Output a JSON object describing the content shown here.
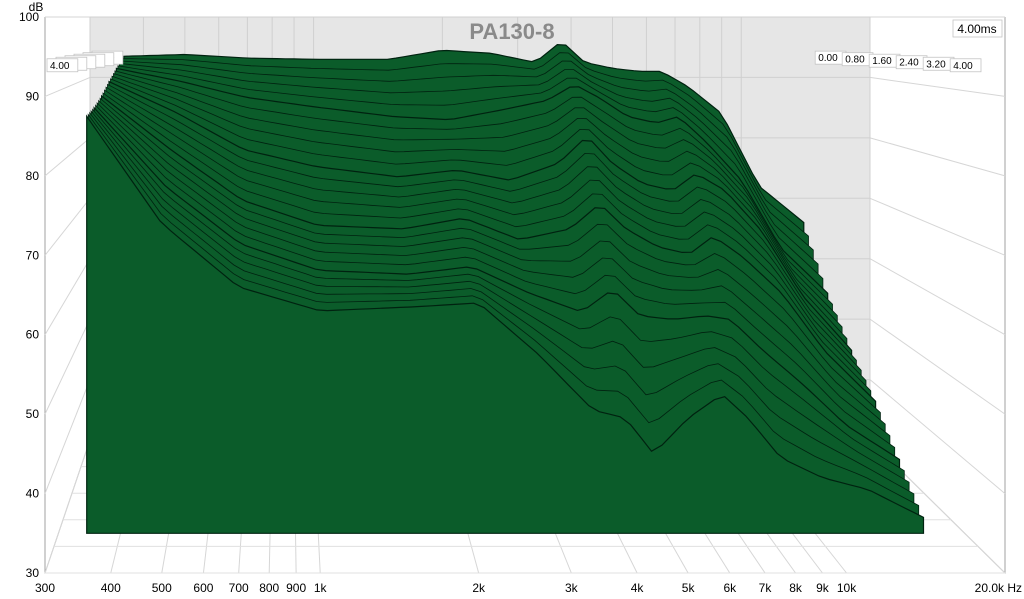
{
  "chart_data": {
    "type": "area",
    "title": "PA130-8",
    "xlabel": "Hz",
    "ylabel": "dB",
    "x_scale": "log",
    "xlim": [
      300,
      20000
    ],
    "ylim": [
      30,
      100
    ],
    "zlabel": "ms",
    "zlim": [
      0,
      4
    ],
    "grid": true,
    "y_ticks": [
      "100",
      "90",
      "80",
      "70",
      "60",
      "50",
      "40",
      "30"
    ],
    "x_ticks": [
      {
        "v": 300,
        "t": "300"
      },
      {
        "v": 400,
        "t": "400"
      },
      {
        "v": 500,
        "t": "500"
      },
      {
        "v": 600,
        "t": "600"
      },
      {
        "v": 700,
        "t": "700"
      },
      {
        "v": 800,
        "t": "800"
      },
      {
        "v": 900,
        "t": "900"
      },
      {
        "v": 1000,
        "t": "1k"
      },
      {
        "v": 2000,
        "t": "2k"
      },
      {
        "v": 3000,
        "t": "3k"
      },
      {
        "v": 4000,
        "t": "4k"
      },
      {
        "v": 5000,
        "t": "5k"
      },
      {
        "v": 6000,
        "t": "6k"
      },
      {
        "v": 7000,
        "t": "7k"
      },
      {
        "v": 8000,
        "t": "8k"
      },
      {
        "v": 9000,
        "t": "9k"
      },
      {
        "v": 10000,
        "t": "10k"
      },
      {
        "v": 20000,
        "t": "20.0k Hz"
      }
    ],
    "time_labels": [
      "0.00",
      "0.80",
      "1.60",
      "2.40",
      "3.20",
      "4.00"
    ],
    "end_time_label": "4.00ms",
    "fill_color": "#0b5c2a",
    "series": [
      {
        "t": 0.0,
        "x": [
          360,
          500,
          700,
          1000,
          1500,
          2000,
          2600,
          3300,
          3800,
          4300,
          5000,
          5800,
          6500,
          7500,
          9000,
          11000,
          14000
        ],
        "y": [
          93.5,
          93.8,
          93.2,
          93.0,
          93.0,
          94.5,
          94.0,
          92.5,
          96.0,
          92.5,
          91.5,
          91.0,
          91.0,
          88.5,
          84.0,
          72.0,
          66.0
        ]
      },
      {
        "t": 0.8,
        "x": [
          360,
          500,
          700,
          1000,
          1500,
          2000,
          2600,
          3300,
          3800,
          4300,
          5000,
          5800,
          6500,
          7500,
          9000,
          11000,
          14000
        ],
        "y": [
          92.0,
          90.0,
          87.5,
          86.0,
          84.5,
          84.0,
          85.5,
          87.0,
          89.5,
          87.5,
          84.5,
          83.5,
          84.5,
          80.5,
          74.5,
          64.0,
          57.0
        ]
      },
      {
        "t": 1.6,
        "x": [
          360,
          500,
          700,
          1000,
          1500,
          2000,
          2600,
          3300,
          3800,
          4300,
          5000,
          5800,
          6500,
          7500,
          9000,
          11000,
          14000
        ],
        "y": [
          90.5,
          86.0,
          80.5,
          78.0,
          76.5,
          77.5,
          76.0,
          78.5,
          82.5,
          78.5,
          75.5,
          74.5,
          77.0,
          74.5,
          68.5,
          59.0,
          51.0
        ]
      },
      {
        "t": 2.4,
        "x": [
          360,
          500,
          700,
          1000,
          1500,
          2000,
          2600,
          3300,
          3800,
          4300,
          5000,
          5800,
          6500,
          7500,
          9000,
          11000,
          14000
        ],
        "y": [
          89.0,
          81.5,
          74.5,
          71.0,
          70.5,
          72.0,
          69.0,
          70.5,
          74.0,
          70.5,
          68.0,
          67.0,
          69.5,
          66.5,
          61.5,
          53.5,
          46.5
        ]
      },
      {
        "t": 3.2,
        "x": [
          360,
          500,
          700,
          1000,
          1500,
          2000,
          2600,
          3300,
          3800,
          4300,
          5000,
          5800,
          6500,
          7500,
          9000,
          11000,
          14000
        ],
        "y": [
          88.0,
          77.5,
          70.0,
          66.5,
          66.0,
          67.0,
          63.5,
          61.0,
          64.0,
          60.5,
          60.0,
          60.5,
          60.0,
          56.0,
          51.5,
          46.0,
          41.5
        ]
      },
      {
        "t": 4.0,
        "x": [
          360,
          500,
          700,
          1000,
          1500,
          2000,
          2600,
          3300,
          3800,
          4300,
          5000,
          5800,
          6500,
          7500,
          9000,
          11000,
          14000
        ],
        "y": [
          87.5,
          74.0,
          66.0,
          63.0,
          63.5,
          64.0,
          57.5,
          50.5,
          49.5,
          45.0,
          49.5,
          52.5,
          49.5,
          44.5,
          42.0,
          40.5,
          37.0
        ]
      }
    ]
  }
}
